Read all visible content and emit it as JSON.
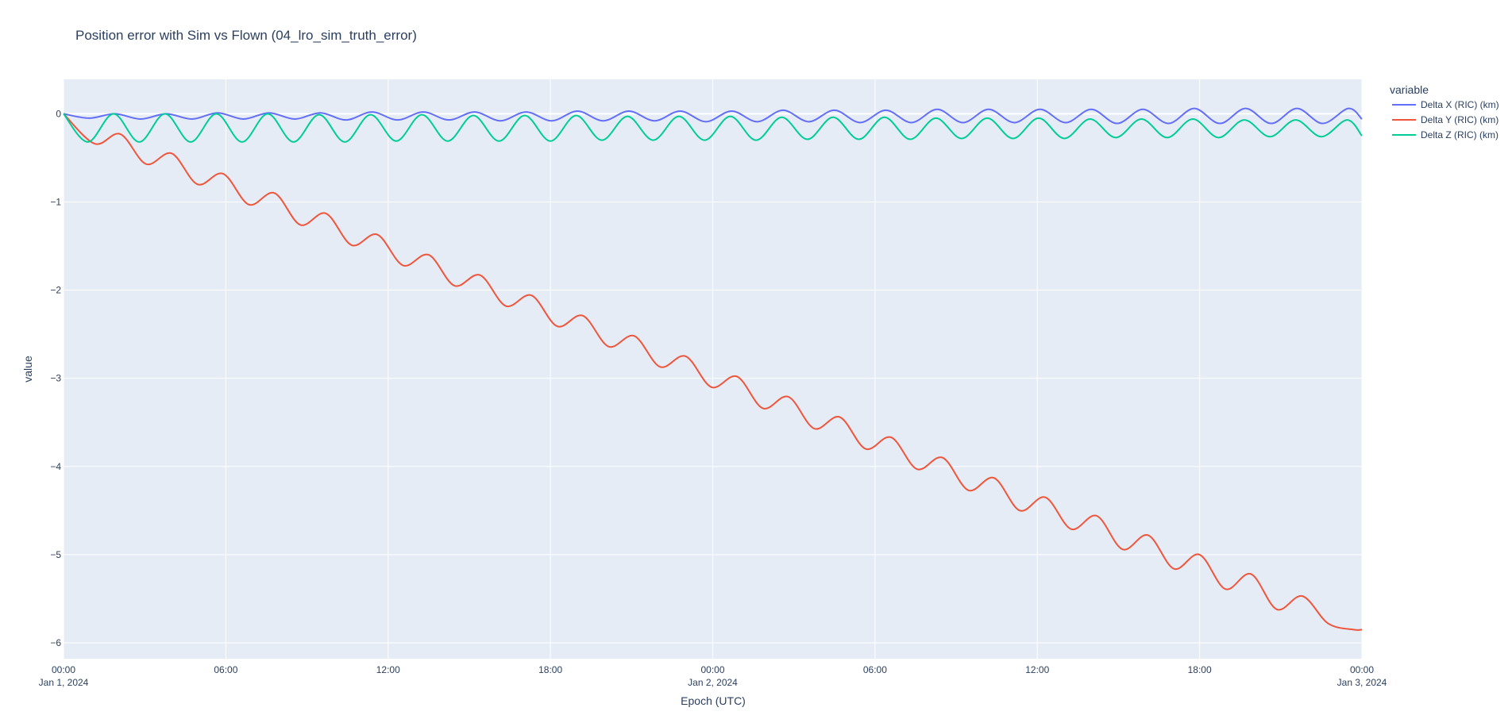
{
  "chart_data": {
    "type": "line",
    "title": "Position error with Sim vs Flown (04_lro_sim_truth_error)",
    "xlabel": "Epoch (UTC)",
    "ylabel": "value",
    "x_range": [
      "2024-01-01T00:00",
      "2024-01-03T00:00"
    ],
    "ylim": [
      -6.18,
      0.39
    ],
    "grid": true,
    "legend_placement": "top-right outside",
    "legend_title": "variable",
    "x_ticks": [
      {
        "line1": "00:00",
        "line2": "Jan 1, 2024"
      },
      {
        "line1": "06:00",
        "line2": ""
      },
      {
        "line1": "12:00",
        "line2": ""
      },
      {
        "line1": "18:00",
        "line2": ""
      },
      {
        "line1": "00:00",
        "line2": "Jan 2, 2024"
      },
      {
        "line1": "06:00",
        "line2": ""
      },
      {
        "line1": "12:00",
        "line2": ""
      },
      {
        "line1": "18:00",
        "line2": ""
      },
      {
        "line1": "00:00",
        "line2": "Jan 3, 2024"
      }
    ],
    "y_ticks": [
      "0",
      "−1",
      "−2",
      "−3",
      "−4",
      "−5",
      "−6"
    ],
    "y_tick_values": [
      0,
      -1,
      -2,
      -3,
      -4,
      -5,
      -6
    ],
    "series": [
      {
        "name": "Delta X (RIC) (km)",
        "color": "#636efa",
        "x": [
          "2024-01-01T00:00",
          "2024-01-01T00:57",
          "2024-01-01T01:54",
          "2024-01-01T02:51",
          "2024-01-01T03:48",
          "2024-01-01T04:45",
          "2024-01-01T05:42",
          "2024-01-01T06:39",
          "2024-01-01T07:36",
          "2024-01-01T08:33",
          "2024-01-01T09:30",
          "2024-01-01T10:27",
          "2024-01-01T11:24",
          "2024-01-01T12:21",
          "2024-01-01T13:18",
          "2024-01-01T14:15",
          "2024-01-01T15:12",
          "2024-01-01T16:09",
          "2024-01-01T17:06",
          "2024-01-01T18:03",
          "2024-01-01T19:00",
          "2024-01-01T19:57",
          "2024-01-01T20:54",
          "2024-01-01T21:51",
          "2024-01-01T22:48",
          "2024-01-01T23:45",
          "2024-01-02T00:42",
          "2024-01-02T01:39",
          "2024-01-02T02:36",
          "2024-01-02T03:33",
          "2024-01-02T04:30",
          "2024-01-02T05:27",
          "2024-01-02T06:24",
          "2024-01-02T07:21",
          "2024-01-02T08:18",
          "2024-01-02T09:15",
          "2024-01-02T10:12",
          "2024-01-02T11:09",
          "2024-01-02T12:06",
          "2024-01-02T13:03",
          "2024-01-02T14:00",
          "2024-01-02T14:57",
          "2024-01-02T15:54",
          "2024-01-02T16:51",
          "2024-01-02T17:48",
          "2024-01-02T18:45",
          "2024-01-02T19:42",
          "2024-01-02T20:39",
          "2024-01-02T21:36",
          "2024-01-02T22:33",
          "2024-01-02T23:30",
          "2024-01-03T00:00"
        ],
        "y": [
          0,
          -0.05,
          0.0,
          -0.06,
          0.0,
          -0.06,
          0.01,
          -0.06,
          0.01,
          -0.06,
          0.01,
          -0.07,
          0.02,
          -0.07,
          0.02,
          -0.07,
          0.02,
          -0.08,
          0.02,
          -0.08,
          0.03,
          -0.08,
          0.03,
          -0.08,
          0.03,
          -0.09,
          0.03,
          -0.09,
          0.04,
          -0.09,
          0.04,
          -0.1,
          0.04,
          -0.1,
          0.05,
          -0.1,
          0.05,
          -0.1,
          0.05,
          -0.1,
          0.05,
          -0.11,
          0.05,
          -0.11,
          0.06,
          -0.11,
          0.06,
          -0.11,
          0.06,
          -0.11,
          0.06,
          -0.06
        ]
      },
      {
        "name": "Delta Y (RIC) (km)",
        "color": "#ef553b",
        "x": [
          "2024-01-01T00:00",
          "2024-01-01T01:09",
          "2024-01-01T02:06",
          "2024-01-01T03:03",
          "2024-01-01T04:00",
          "2024-01-01T04:57",
          "2024-01-01T05:54",
          "2024-01-01T06:51",
          "2024-01-01T07:48",
          "2024-01-01T08:45",
          "2024-01-01T09:42",
          "2024-01-01T10:39",
          "2024-01-01T11:36",
          "2024-01-01T12:33",
          "2024-01-01T13:30",
          "2024-01-01T14:27",
          "2024-01-01T15:24",
          "2024-01-01T16:21",
          "2024-01-01T17:18",
          "2024-01-01T18:15",
          "2024-01-01T19:12",
          "2024-01-01T20:09",
          "2024-01-01T21:06",
          "2024-01-01T22:03",
          "2024-01-01T23:00",
          "2024-01-01T23:57",
          "2024-01-02T00:54",
          "2024-01-02T01:51",
          "2024-01-02T02:48",
          "2024-01-02T03:45",
          "2024-01-02T04:42",
          "2024-01-02T05:39",
          "2024-01-02T06:36",
          "2024-01-02T07:33",
          "2024-01-02T08:30",
          "2024-01-02T09:27",
          "2024-01-02T10:24",
          "2024-01-02T11:21",
          "2024-01-02T12:18",
          "2024-01-02T13:15",
          "2024-01-02T14:12",
          "2024-01-02T15:09",
          "2024-01-02T16:06",
          "2024-01-02T17:03",
          "2024-01-02T18:00",
          "2024-01-02T18:57",
          "2024-01-02T19:54",
          "2024-01-02T20:51",
          "2024-01-02T21:48",
          "2024-01-02T22:45",
          "2024-01-02T23:42",
          "2024-01-03T00:00"
        ],
        "y": [
          0,
          -0.34,
          -0.23,
          -0.57,
          -0.45,
          -0.8,
          -0.68,
          -1.03,
          -0.9,
          -1.26,
          -1.13,
          -1.49,
          -1.37,
          -1.72,
          -1.6,
          -1.95,
          -1.83,
          -2.18,
          -2.06,
          -2.41,
          -2.29,
          -2.64,
          -2.52,
          -2.87,
          -2.75,
          -3.1,
          -2.98,
          -3.34,
          -3.21,
          -3.57,
          -3.44,
          -3.8,
          -3.67,
          -4.03,
          -3.9,
          -4.27,
          -4.13,
          -4.5,
          -4.35,
          -4.71,
          -4.56,
          -4.94,
          -4.78,
          -5.16,
          -5.0,
          -5.39,
          -5.22,
          -5.62,
          -5.47,
          -5.78,
          -5.85,
          -5.85
        ]
      },
      {
        "name": "Delta Z (RIC) (km)",
        "color": "#00cc96",
        "x": [
          "2024-01-01T00:00",
          "2024-01-01T00:54",
          "2024-01-01T01:51",
          "2024-01-01T02:48",
          "2024-01-01T03:45",
          "2024-01-01T04:42",
          "2024-01-01T05:39",
          "2024-01-01T06:36",
          "2024-01-01T07:33",
          "2024-01-01T08:30",
          "2024-01-01T09:27",
          "2024-01-01T10:24",
          "2024-01-01T11:21",
          "2024-01-01T12:18",
          "2024-01-01T13:15",
          "2024-01-01T14:12",
          "2024-01-01T15:09",
          "2024-01-01T16:06",
          "2024-01-01T17:03",
          "2024-01-01T18:00",
          "2024-01-01T18:57",
          "2024-01-01T19:54",
          "2024-01-01T20:51",
          "2024-01-01T21:48",
          "2024-01-01T22:45",
          "2024-01-01T23:42",
          "2024-01-02T00:39",
          "2024-01-02T01:36",
          "2024-01-02T02:33",
          "2024-01-02T03:30",
          "2024-01-02T04:27",
          "2024-01-02T05:24",
          "2024-01-02T06:21",
          "2024-01-02T07:18",
          "2024-01-02T08:15",
          "2024-01-02T09:12",
          "2024-01-02T10:09",
          "2024-01-02T11:06",
          "2024-01-02T12:03",
          "2024-01-02T13:00",
          "2024-01-02T13:57",
          "2024-01-02T14:54",
          "2024-01-02T15:51",
          "2024-01-02T16:48",
          "2024-01-02T17:45",
          "2024-01-02T18:42",
          "2024-01-02T19:39",
          "2024-01-02T20:36",
          "2024-01-02T21:33",
          "2024-01-02T22:30",
          "2024-01-02T23:27",
          "2024-01-03T00:00"
        ],
        "y": [
          0,
          -0.32,
          0.0,
          -0.32,
          0.0,
          -0.32,
          0.0,
          -0.32,
          0.0,
          -0.32,
          -0.01,
          -0.32,
          -0.01,
          -0.31,
          -0.01,
          -0.31,
          -0.02,
          -0.31,
          -0.02,
          -0.31,
          -0.02,
          -0.3,
          -0.03,
          -0.3,
          -0.03,
          -0.3,
          -0.03,
          -0.3,
          -0.04,
          -0.29,
          -0.04,
          -0.29,
          -0.04,
          -0.29,
          -0.05,
          -0.28,
          -0.05,
          -0.28,
          -0.05,
          -0.28,
          -0.06,
          -0.27,
          -0.06,
          -0.27,
          -0.06,
          -0.27,
          -0.07,
          -0.26,
          -0.07,
          -0.26,
          -0.07,
          -0.25
        ]
      }
    ]
  }
}
